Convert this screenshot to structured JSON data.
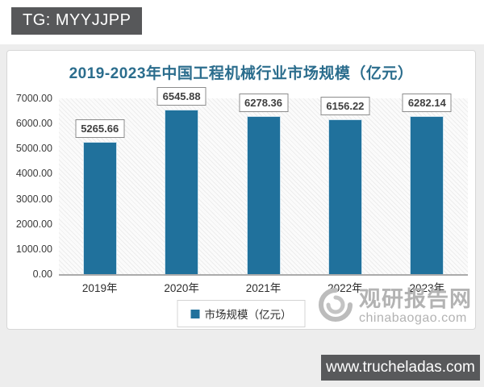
{
  "page": {
    "top_badge": "TG: MYYJJPP",
    "bottom_badge": "www.trucheladas.com"
  },
  "watermark": {
    "name": "观研报告网",
    "site": "chinabaogao.com",
    "color": "#b3b3b3"
  },
  "chart_data": {
    "type": "bar",
    "title": "2019-2023年中国工程机械行业市场规模（亿元）",
    "categories": [
      "2019年",
      "2020年",
      "2021年",
      "2022年",
      "2023年"
    ],
    "values": [
      5265.66,
      6545.88,
      6278.36,
      6156.22,
      6282.14
    ],
    "value_labels": [
      "5265.66",
      "6545.88",
      "6278.36",
      "6156.22",
      "6282.14"
    ],
    "legend": "市场规模（亿元）",
    "legend_position": "bottom",
    "ylim": [
      0,
      7000
    ],
    "ytick_step": 1000,
    "yticks": [
      "7000.00",
      "6000.00",
      "5000.00",
      "4000.00",
      "3000.00",
      "2000.00",
      "1000.00",
      "0.00"
    ],
    "grid": false,
    "bar_color": "#20719c",
    "title_color": "#2b6d8d"
  }
}
